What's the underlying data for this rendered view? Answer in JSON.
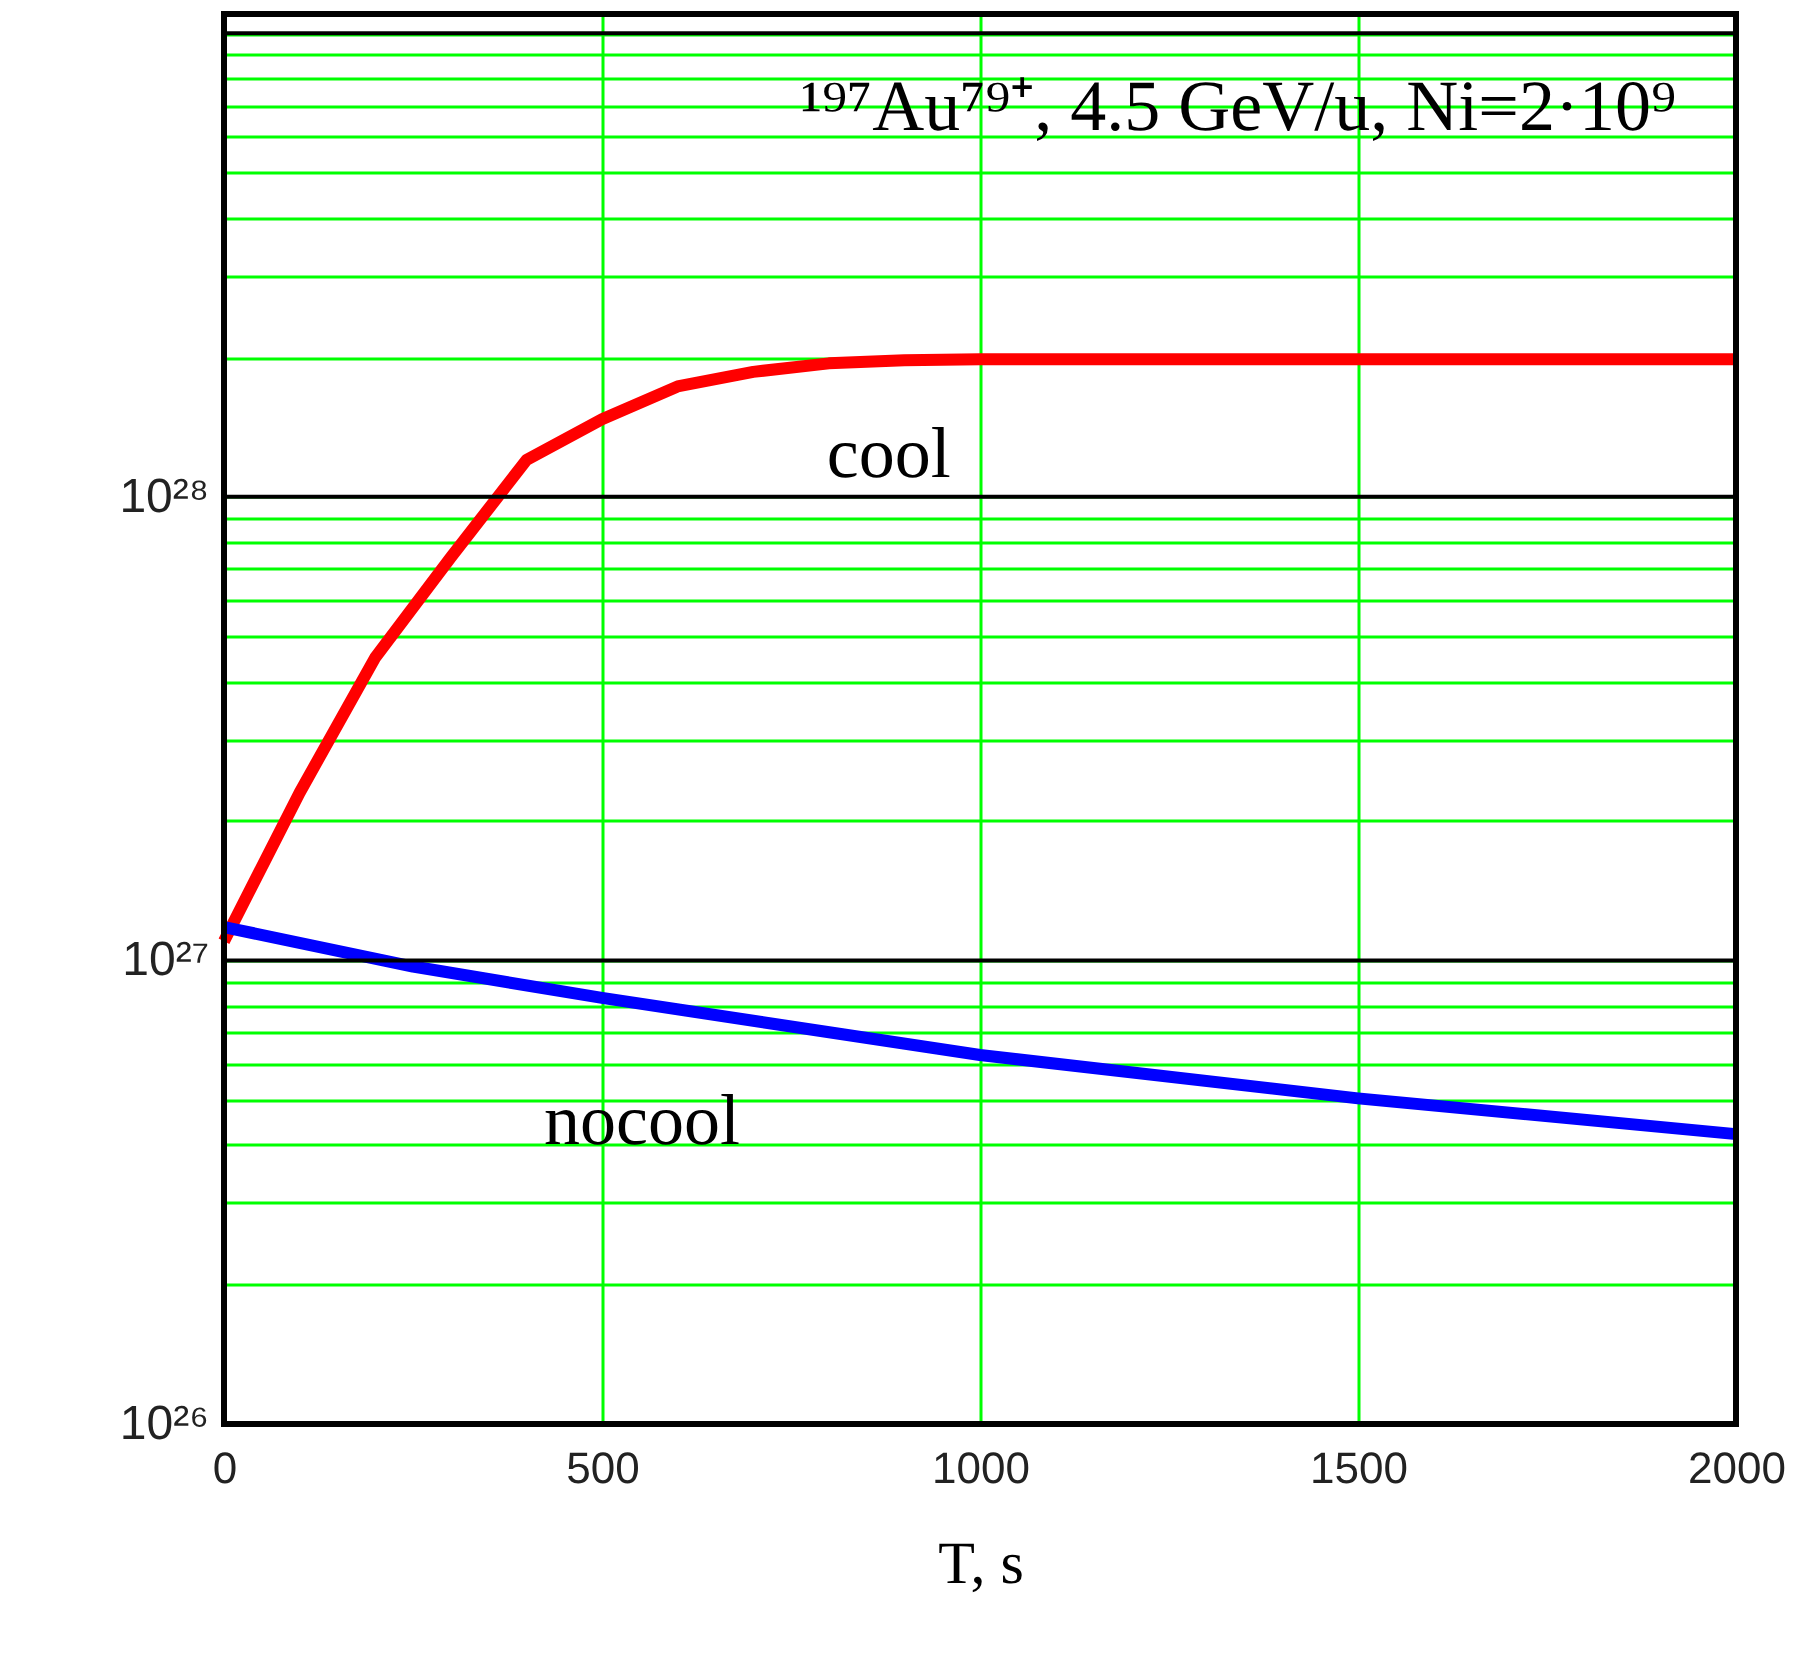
{
  "chart_data": {
    "type": "line",
    "xlabel": "T, s",
    "annotations": [
      "¹⁹⁷Au⁷⁹⁺, 4.5 GeV/u, Ni=2·10⁹"
    ],
    "xlim": [
      0,
      2000
    ],
    "xticks": [
      0,
      500,
      1000,
      1500,
      2000
    ],
    "ylim": [
      1e+26,
      1.1e+29
    ],
    "log": true,
    "grid": true,
    "line_style": "solid",
    "marker": "none",
    "yticks": [
      {
        "value": 1e+26,
        "label": "10²⁶"
      },
      {
        "value": 2e+26,
        "label": null
      },
      {
        "value": 3e+26,
        "label": null
      },
      {
        "value": 4e+26,
        "label": null
      },
      {
        "value": 5e+26,
        "label": null
      },
      {
        "value": 6e+26,
        "label": null
      },
      {
        "value": 7e+26,
        "label": null
      },
      {
        "value": 8e+26,
        "label": null
      },
      {
        "value": 9e+26,
        "label": null
      },
      {
        "value": 1e+27,
        "label": "10²⁷"
      },
      {
        "value": 2e+27,
        "label": null
      },
      {
        "value": 3e+27,
        "label": null
      },
      {
        "value": 4e+27,
        "label": null
      },
      {
        "value": 5e+27,
        "label": null
      },
      {
        "value": 6e+27,
        "label": null
      },
      {
        "value": 7e+27,
        "label": null
      },
      {
        "value": 8e+27,
        "label": null
      },
      {
        "value": 9e+27,
        "label": null
      },
      {
        "value": 1e+28,
        "label": "10²⁸"
      },
      {
        "value": 2e+28,
        "label": null
      },
      {
        "value": 3e+28,
        "label": null
      },
      {
        "value": 4e+28,
        "label": null
      },
      {
        "value": 5e+28,
        "label": null
      },
      {
        "value": 6e+28,
        "label": null
      },
      {
        "value": 7e+28,
        "label": null
      },
      {
        "value": 8e+28,
        "label": null
      },
      {
        "value": 9e+28,
        "label": null
      },
      {
        "value": 1e+29,
        "label": null
      }
    ],
    "series": [
      {
        "name": "cool",
        "color": "#ff0000",
        "x": [
          0,
          100,
          200,
          300,
          400,
          500,
          600,
          700,
          800,
          900,
          1000,
          1500,
          2000
        ],
        "values": [
          1.1e+27,
          2.3e+27,
          4.5e+27,
          7.4e+27,
          1.2e+28,
          1.47e+28,
          1.73e+28,
          1.86e+28,
          1.94e+28,
          1.97e+28,
          1.98e+28,
          1.98e+28,
          1.98e+28
        ]
      },
      {
        "name": "nocool",
        "color": "#0000ff",
        "x": [
          0,
          250,
          500,
          1000,
          1500,
          2000
        ],
        "values": [
          1.18e+27,
          9.7e+26,
          8.3e+26,
          6.25e+26,
          5.04e+26,
          4.22e+26
        ]
      }
    ]
  }
}
